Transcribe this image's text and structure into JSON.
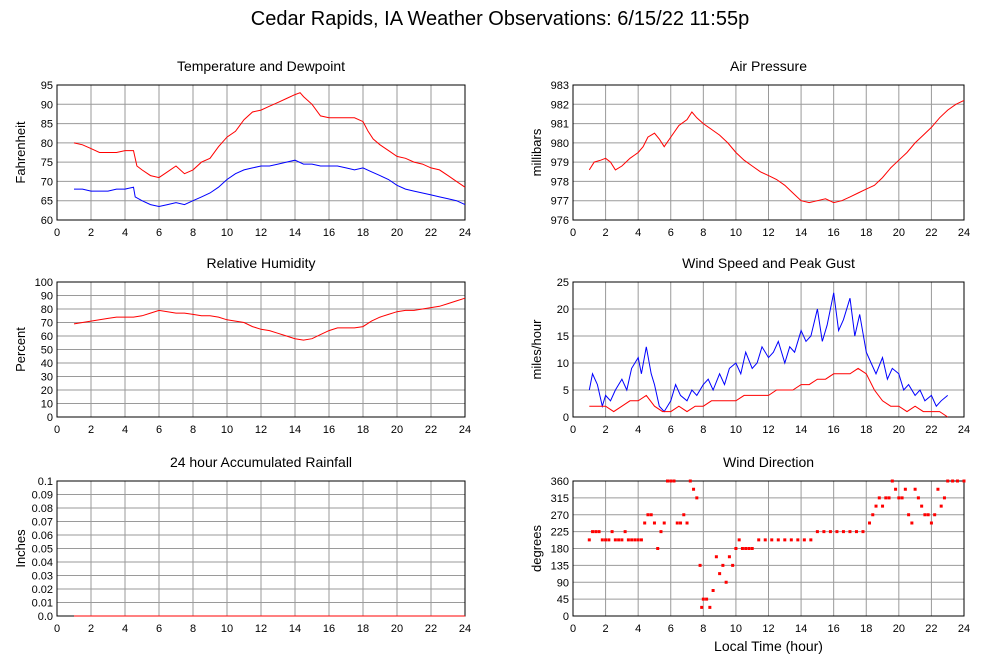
{
  "page_title": "Cedar Rapids, IA Weather Observations: 6/15/22 11:55p",
  "global_xlabel": "Local Time (hour)",
  "chart_data": [
    {
      "type": "line",
      "title": "Temperature and Dewpoint",
      "xlabel": "",
      "ylabel": "Fahrenheit",
      "xlim": [
        0,
        24
      ],
      "ylim": [
        60,
        95
      ],
      "xticks": [
        2,
        4,
        6,
        8,
        10,
        12,
        14,
        16,
        18,
        20,
        22,
        24
      ],
      "yticks": [
        60,
        65,
        70,
        75,
        80,
        85,
        90,
        95
      ],
      "yticklabels": [
        "60",
        "65",
        "70",
        "75",
        "80",
        "85",
        "90",
        "95"
      ],
      "grid": true,
      "series": [
        {
          "color": "#ff0000",
          "x": [
            1,
            1.5,
            2,
            2.5,
            3,
            3.5,
            4,
            4.5,
            4.7,
            5,
            5.5,
            6,
            6.5,
            7,
            7.5,
            8,
            8.5,
            9,
            9.5,
            10,
            10.5,
            11,
            11.5,
            12,
            12.5,
            13,
            13.5,
            14,
            14.3,
            14.5,
            15,
            15.5,
            16,
            16.5,
            17,
            17.5,
            18,
            18.3,
            18.6,
            19,
            19.5,
            20,
            20.5,
            21,
            21.5,
            22,
            22.5,
            23,
            23.5,
            24
          ],
          "values": [
            80,
            79.5,
            78.5,
            77.5,
            77.5,
            77.5,
            78,
            78,
            74,
            73,
            71.5,
            71,
            72.5,
            74,
            72,
            73,
            75,
            76,
            79,
            81.5,
            83,
            86,
            88,
            88.5,
            89.5,
            90.5,
            91.5,
            92.5,
            93,
            92,
            90,
            87,
            86.5,
            86.5,
            86.5,
            86.5,
            85.5,
            83,
            81,
            79.5,
            78,
            76.5,
            76,
            75,
            74.5,
            73.5,
            73,
            71.5,
            70,
            68.5
          ]
        },
        {
          "color": "#0000ff",
          "x": [
            1,
            1.5,
            2,
            2.5,
            3,
            3.5,
            4,
            4.5,
            4.6,
            5,
            5.5,
            6,
            6.5,
            7,
            7.5,
            8,
            8.5,
            9,
            9.5,
            10,
            10.5,
            11,
            11.5,
            12,
            12.5,
            13,
            13.5,
            14,
            14.5,
            15,
            15.5,
            16,
            16.5,
            17,
            17.5,
            18,
            18.5,
            19,
            19.5,
            20,
            20.5,
            21,
            21.5,
            22,
            22.5,
            23,
            23.5,
            24
          ],
          "values": [
            68,
            68,
            67.5,
            67.5,
            67.5,
            68,
            68,
            68.5,
            66,
            65,
            64,
            63.5,
            64,
            64.5,
            64,
            65,
            66,
            67,
            68.5,
            70.5,
            72,
            73,
            73.5,
            74,
            74,
            74.5,
            75,
            75.5,
            74.5,
            74.5,
            74,
            74,
            74,
            73.5,
            73,
            73.5,
            72.5,
            71.5,
            70.5,
            69,
            68,
            67.5,
            67,
            66.5,
            66,
            65.5,
            65,
            64
          ]
        }
      ]
    },
    {
      "type": "line",
      "title": "Air Pressure",
      "xlabel": "",
      "ylabel": "millibars",
      "xlim": [
        0,
        24
      ],
      "ylim": [
        976,
        983
      ],
      "xticks": [
        2,
        4,
        6,
        8,
        10,
        12,
        14,
        16,
        18,
        20,
        22,
        24
      ],
      "yticks": [
        976,
        977,
        978,
        979,
        980,
        981,
        982,
        983
      ],
      "yticklabels": [
        "976",
        "977",
        "978",
        "979",
        "980",
        "981",
        "982",
        "983"
      ],
      "grid": true,
      "series": [
        {
          "color": "#ff0000",
          "x": [
            1,
            1.3,
            1.7,
            2,
            2.3,
            2.6,
            3,
            3.5,
            4,
            4.3,
            4.6,
            5,
            5.3,
            5.6,
            6,
            6.5,
            7,
            7.3,
            7.6,
            8,
            8.5,
            9,
            9.5,
            10,
            10.5,
            11,
            11.5,
            12,
            12.5,
            13,
            13.5,
            14,
            14.5,
            15,
            15.5,
            16,
            16.5,
            17,
            17.5,
            18,
            18.5,
            19,
            19.5,
            20,
            20.5,
            21,
            21.5,
            22,
            22.5,
            23,
            23.5,
            24
          ],
          "values": [
            978.6,
            979.0,
            979.1,
            979.2,
            979.0,
            978.6,
            978.8,
            979.2,
            979.5,
            979.8,
            980.3,
            980.5,
            980.2,
            979.8,
            980.3,
            980.9,
            981.2,
            981.6,
            981.3,
            981.0,
            980.7,
            980.4,
            980.0,
            979.5,
            979.1,
            978.8,
            978.5,
            978.3,
            978.1,
            977.8,
            977.4,
            977.0,
            976.9,
            977.0,
            977.1,
            976.9,
            977.0,
            977.2,
            977.4,
            977.6,
            977.8,
            978.2,
            978.7,
            979.1,
            979.5,
            980.0,
            980.4,
            980.8,
            981.3,
            981.7,
            982.0,
            982.2
          ]
        }
      ]
    },
    {
      "type": "line",
      "title": "Relative Humidity",
      "xlabel": "",
      "ylabel": "Percent",
      "xlim": [
        0,
        24
      ],
      "ylim": [
        0,
        100
      ],
      "xticks": [
        2,
        4,
        6,
        8,
        10,
        12,
        14,
        16,
        18,
        20,
        22,
        24
      ],
      "yticks": [
        0,
        10,
        20,
        30,
        40,
        50,
        60,
        70,
        80,
        90,
        100
      ],
      "yticklabels": [
        "0",
        "10",
        "20",
        "30",
        "40",
        "50",
        "60",
        "70",
        "80",
        "90",
        "100"
      ],
      "grid": true,
      "series": [
        {
          "color": "#ff0000",
          "x": [
            1,
            1.5,
            2,
            2.5,
            3,
            3.5,
            4,
            4.5,
            5,
            5.5,
            6,
            6.5,
            7,
            7.5,
            8,
            8.5,
            9,
            9.5,
            10,
            10.5,
            11,
            11.5,
            12,
            12.5,
            13,
            13.5,
            14,
            14.5,
            15,
            15.5,
            16,
            16.5,
            17,
            17.5,
            18,
            18.5,
            19,
            19.5,
            20,
            20.5,
            21,
            21.5,
            22,
            22.5,
            23,
            23.5,
            24
          ],
          "values": [
            69,
            70,
            71,
            72,
            73,
            74,
            74,
            74,
            75,
            77,
            79,
            78,
            77,
            77,
            76,
            75,
            75,
            74,
            72,
            71,
            70,
            67,
            65,
            64,
            62,
            60,
            58,
            57,
            58,
            61,
            64,
            66,
            66,
            66,
            67,
            71,
            74,
            76,
            78,
            79,
            79,
            80,
            81,
            82,
            84,
            86,
            88
          ]
        }
      ]
    },
    {
      "type": "line",
      "title": "Wind Speed and Peak Gust",
      "xlabel": "",
      "ylabel": "miles/hour",
      "xlim": [
        0,
        24
      ],
      "ylim": [
        0,
        25
      ],
      "xticks": [
        2,
        4,
        6,
        8,
        10,
        12,
        14,
        16,
        18,
        20,
        22,
        24
      ],
      "yticks": [
        0,
        5,
        10,
        15,
        20,
        25
      ],
      "yticklabels": [
        "0",
        "5",
        "10",
        "15",
        "20",
        "25"
      ],
      "grid": true,
      "series": [
        {
          "color": "#0000ff",
          "x": [
            1,
            1.2,
            1.5,
            1.8,
            2,
            2.3,
            2.6,
            3,
            3.3,
            3.6,
            4,
            4.2,
            4.5,
            4.8,
            5,
            5.3,
            5.6,
            6,
            6.3,
            6.6,
            7,
            7.3,
            7.6,
            8,
            8.3,
            8.6,
            9,
            9.3,
            9.6,
            10,
            10.3,
            10.6,
            11,
            11.3,
            11.6,
            12,
            12.3,
            12.6,
            13,
            13.3,
            13.6,
            14,
            14.3,
            14.6,
            15,
            15.3,
            15.6,
            16,
            16.3,
            16.6,
            17,
            17.3,
            17.6,
            18,
            18.3,
            18.6,
            19,
            19.3,
            19.6,
            20,
            20.3,
            20.6,
            21,
            21.3,
            21.6,
            22,
            22.3,
            22.6,
            23
          ],
          "values": [
            5,
            8,
            6,
            2,
            4,
            3,
            5,
            7,
            5,
            9,
            11,
            8,
            13,
            8,
            6,
            2,
            1,
            3,
            6,
            4,
            3,
            5,
            4,
            6,
            7,
            5,
            8,
            6,
            9,
            10,
            8,
            12,
            9,
            10,
            13,
            11,
            12,
            14,
            10,
            13,
            12,
            16,
            14,
            15,
            20,
            14,
            17,
            23,
            16,
            18,
            22,
            15,
            19,
            12,
            10,
            8,
            11,
            7,
            9,
            8,
            5,
            6,
            4,
            5,
            3,
            4,
            2,
            3,
            4
          ]
        },
        {
          "color": "#ff0000",
          "x": [
            1,
            1.5,
            2,
            2.5,
            3,
            3.5,
            4,
            4.5,
            5,
            5.5,
            6,
            6.5,
            7,
            7.5,
            8,
            8.5,
            9,
            9.5,
            10,
            10.5,
            11,
            11.5,
            12,
            12.5,
            13,
            13.5,
            14,
            14.5,
            15,
            15.5,
            16,
            16.5,
            17,
            17.5,
            18,
            18.5,
            19,
            19.5,
            20,
            20.5,
            21,
            21.5,
            22,
            22.5,
            23
          ],
          "values": [
            2,
            2,
            2,
            1,
            2,
            3,
            3,
            4,
            2,
            1,
            1,
            2,
            1,
            2,
            2,
            3,
            3,
            3,
            3,
            4,
            4,
            4,
            4,
            5,
            5,
            5,
            6,
            6,
            7,
            7,
            8,
            8,
            8,
            9,
            8,
            5,
            3,
            2,
            2,
            1,
            2,
            1,
            1,
            1,
            0
          ]
        }
      ]
    },
    {
      "type": "line",
      "title": "24 hour Accumulated Rainfall",
      "xlabel": "",
      "ylabel": "Inches",
      "xlim": [
        0,
        24
      ],
      "ylim": [
        0,
        0.1
      ],
      "xticks": [
        2,
        4,
        6,
        8,
        10,
        12,
        14,
        16,
        18,
        20,
        22,
        24
      ],
      "yticks": [
        0,
        0.01,
        0.02,
        0.03,
        0.04,
        0.05,
        0.06,
        0.07,
        0.08,
        0.09,
        0.1
      ],
      "yticklabels": [
        "0.0",
        "0.01",
        "0.02",
        "0.03",
        "0.04",
        "0.05",
        "0.06",
        "0.07",
        "0.08",
        "0.09",
        "0.1"
      ],
      "grid": true,
      "series": [
        {
          "color": "#ff0000",
          "x": [
            1,
            24
          ],
          "values": [
            0,
            0
          ]
        }
      ]
    },
    {
      "type": "scatter",
      "title": "Wind Direction",
      "xlabel": "Local Time (hour)",
      "ylabel": "degrees",
      "xlim": [
        0,
        24
      ],
      "ylim": [
        0,
        360
      ],
      "xticks": [
        2,
        4,
        6,
        8,
        10,
        12,
        14,
        16,
        18,
        20,
        22,
        24
      ],
      "yticks": [
        0,
        45,
        90,
        135,
        180,
        225,
        270,
        315,
        360
      ],
      "yticklabels": [
        "0",
        "45",
        "90",
        "135",
        "180",
        "225",
        "270",
        "315",
        "360"
      ],
      "grid": true,
      "series": [
        {
          "color": "#ff0000",
          "x": [
            1,
            1.2,
            1.4,
            1.6,
            1.8,
            2,
            2.2,
            2.4,
            2.6,
            2.8,
            3,
            3.2,
            3.4,
            3.6,
            3.8,
            4,
            4.2,
            4.4,
            4.6,
            4.8,
            5,
            5.2,
            5.4,
            5.6,
            5.8,
            6,
            6.2,
            6.4,
            6.6,
            6.8,
            7,
            7.2,
            7.4,
            7.6,
            7.8,
            7.9,
            8,
            8.2,
            8.4,
            8.6,
            8.8,
            9,
            9.2,
            9.4,
            9.6,
            9.8,
            10,
            10.2,
            10.4,
            10.6,
            10.8,
            11,
            11.4,
            11.8,
            12.2,
            12.6,
            13,
            13.4,
            13.8,
            14.2,
            14.6,
            15,
            15.4,
            15.8,
            16.2,
            16.6,
            17,
            17.4,
            17.8,
            18.2,
            18.4,
            18.6,
            18.8,
            19,
            19.2,
            19.4,
            19.6,
            19.8,
            20,
            20.2,
            20.4,
            20.6,
            20.8,
            21,
            21.2,
            21.4,
            21.6,
            21.8,
            22,
            22.2,
            22.4,
            22.6,
            22.8,
            23,
            23.3,
            23.6,
            24
          ],
          "values": [
            203,
            225,
            225,
            225,
            203,
            203,
            203,
            225,
            203,
            203,
            203,
            225,
            203,
            203,
            203,
            203,
            203,
            248,
            270,
            270,
            248,
            180,
            225,
            248,
            360,
            360,
            360,
            248,
            248,
            270,
            248,
            360,
            338,
            315,
            135,
            23,
            45,
            45,
            23,
            68,
            158,
            113,
            135,
            90,
            158,
            135,
            180,
            203,
            180,
            180,
            180,
            180,
            203,
            203,
            203,
            203,
            203,
            203,
            203,
            203,
            203,
            225,
            225,
            225,
            225,
            225,
            225,
            225,
            225,
            248,
            270,
            293,
            315,
            293,
            315,
            315,
            360,
            338,
            315,
            315,
            338,
            270,
            248,
            338,
            315,
            293,
            270,
            270,
            248,
            270,
            338,
            293,
            315,
            360,
            360,
            360,
            360
          ]
        }
      ]
    }
  ]
}
